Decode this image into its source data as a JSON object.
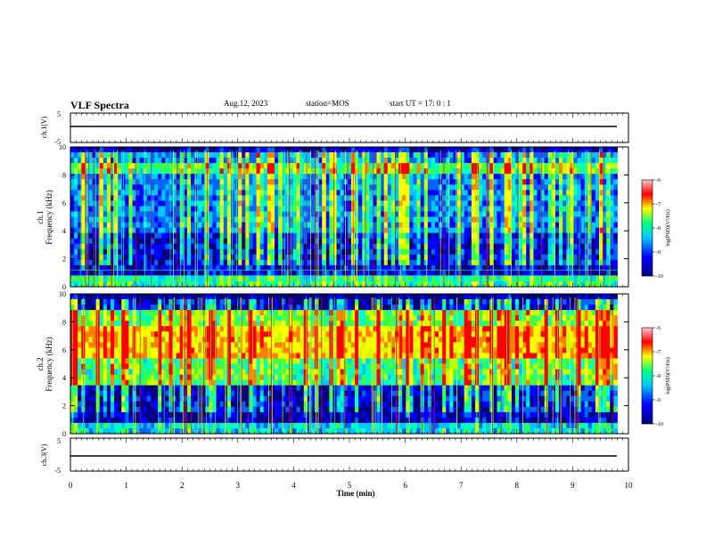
{
  "header": {
    "title": "VLF Spectra",
    "date": "Aug.12, 2023",
    "station": "station=MOS",
    "start": "start UT =  17: 0  : 1"
  },
  "colors": {
    "spectrogram_bg": "#000080",
    "trace": "#000000",
    "colorbar": [
      "#00007f",
      "#0000ff",
      "#00c8ff",
      "#00ff80",
      "#ffff00",
      "#ff0000",
      "#ffc8c8"
    ]
  },
  "chart_data": [
    {
      "type": "line",
      "panel": "ch1-waveform",
      "ylabel": "ch.1(V)",
      "ylim": [
        -5,
        5
      ],
      "yticks": [
        "5",
        "-5"
      ],
      "x": [
        0,
        10
      ],
      "series": [
        {
          "values": [
            0,
            0
          ]
        }
      ]
    },
    {
      "type": "heatmap",
      "panel": "ch1-spectrogram",
      "ylabel": "ch.1\nFrequency (kHz)",
      "ylabel_line1": "ch.1",
      "ylabel_line2": "Frequency (kHz)",
      "ylim": [
        0,
        10
      ],
      "yticks": [
        "0",
        "2",
        "4",
        "6",
        "8",
        "10"
      ],
      "xlim": [
        0,
        9.8
      ],
      "colorbar": {
        "label": "log(PSD)(V²/Hz)",
        "range": [
          -10,
          -6
        ],
        "ticks": [
          "-6",
          "-7",
          "-8",
          "-9",
          "-10"
        ]
      }
    },
    {
      "type": "heatmap",
      "panel": "ch2-spectrogram",
      "ylabel_line1": "ch.2",
      "ylabel_line2": "Frequency (kHz)",
      "ylim": [
        0,
        10
      ],
      "yticks": [
        "0",
        "2",
        "4",
        "6",
        "8",
        "10"
      ],
      "xlim": [
        0,
        9.8
      ],
      "colorbar": {
        "label": "log(PSD)(V²/Hz)",
        "range": [
          -10,
          -6
        ],
        "ticks": [
          "-6",
          "-7",
          "-8",
          "-9",
          "-10"
        ]
      }
    },
    {
      "type": "line",
      "panel": "ch3-waveform",
      "ylabel": "ch.3(V)",
      "ylim": [
        -5,
        5
      ],
      "yticks": [
        "5",
        "-5"
      ],
      "x": [
        0,
        10
      ],
      "series": [
        {
          "values": [
            0,
            0
          ]
        }
      ]
    }
  ],
  "xaxis": {
    "label": "Time (min)",
    "range": [
      0,
      10
    ],
    "ticks": [
      "0",
      "1",
      "2",
      "3",
      "4",
      "5",
      "6",
      "7",
      "8",
      "9",
      "10"
    ]
  }
}
